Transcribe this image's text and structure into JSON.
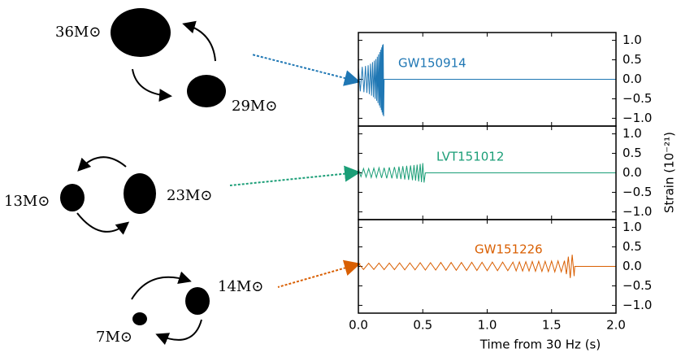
{
  "chart_data": {
    "type": "line",
    "xlabel": "Time from 30 Hz (s)",
    "ylabel": "Strain (10⁻²¹)",
    "xlim": [
      0,
      2
    ],
    "xticks": [
      {
        "value": 0,
        "label": "0.0"
      },
      {
        "value": 0.5,
        "label": "0.5"
      },
      {
        "value": 1,
        "label": "1.0"
      },
      {
        "value": 1.5,
        "label": "1.5"
      },
      {
        "value": 2,
        "label": "2.0"
      }
    ],
    "ylim": [
      -1.2,
      1.2
    ],
    "yticks": [
      {
        "value": 1,
        "label": "1.0"
      },
      {
        "value": 0.5,
        "label": "0.5"
      },
      {
        "value": 0,
        "label": "0.0"
      },
      {
        "value": -0.5,
        "label": "−0.5"
      },
      {
        "value": -1,
        "label": "−1.0"
      }
    ],
    "series": [
      {
        "name": "GW150914",
        "color": "#1f77b4",
        "x": [
          0,
          0.015,
          0.03,
          0.043,
          0.055,
          0.066,
          0.076,
          0.085,
          0.094,
          0.102,
          0.11,
          0.117,
          0.124,
          0.13,
          0.136,
          0.142,
          0.147,
          0.152,
          0.157,
          0.162,
          0.166,
          0.17,
          0.174,
          0.178,
          0.181,
          0.184,
          0.187,
          0.19,
          0.193,
          0.196,
          0.2,
          2.0
        ],
        "values": [
          0.3,
          -0.31,
          0.32,
          -0.33,
          0.34,
          -0.35,
          0.36,
          -0.38,
          0.4,
          -0.42,
          0.44,
          -0.46,
          0.48,
          -0.5,
          0.52,
          -0.55,
          0.58,
          -0.61,
          0.64,
          -0.67,
          0.7,
          -0.73,
          0.76,
          -0.79,
          0.82,
          -0.85,
          0.88,
          -0.91,
          0.9,
          -0.95,
          0,
          0
        ]
      },
      {
        "name": "LVT151012",
        "color": "#1b9e77",
        "x": [
          0,
          0.02,
          0.04,
          0.06,
          0.08,
          0.1,
          0.12,
          0.14,
          0.16,
          0.18,
          0.2,
          0.22,
          0.24,
          0.26,
          0.28,
          0.3,
          0.315,
          0.33,
          0.345,
          0.36,
          0.375,
          0.39,
          0.405,
          0.42,
          0.432,
          0.444,
          0.456,
          0.468,
          0.48,
          0.49,
          0.5,
          0.51,
          0.52,
          2.0
        ],
        "values": [
          0.1,
          -0.1,
          0.11,
          -0.11,
          0.11,
          -0.12,
          0.12,
          -0.12,
          0.13,
          -0.13,
          0.13,
          -0.14,
          0.14,
          -0.14,
          0.15,
          -0.15,
          0.16,
          -0.16,
          0.17,
          -0.17,
          0.18,
          -0.18,
          0.19,
          -0.19,
          0.2,
          -0.2,
          0.21,
          -0.22,
          0.23,
          -0.24,
          0.25,
          -0.25,
          0,
          0
        ]
      },
      {
        "name": "GW151226",
        "color": "#d95f02",
        "x": [
          0,
          0.04,
          0.08,
          0.12,
          0.16,
          0.2,
          0.24,
          0.28,
          0.32,
          0.36,
          0.4,
          0.44,
          0.48,
          0.52,
          0.56,
          0.6,
          0.64,
          0.68,
          0.72,
          0.76,
          0.8,
          0.84,
          0.88,
          0.92,
          0.96,
          1.0,
          1.04,
          1.08,
          1.12,
          1.16,
          1.2,
          1.225,
          1.25,
          1.275,
          1.3,
          1.325,
          1.35,
          1.375,
          1.4,
          1.425,
          1.45,
          1.475,
          1.5,
          1.525,
          1.55,
          1.575,
          1.6,
          1.615,
          1.63,
          1.645,
          1.66,
          1.675,
          1.68,
          2.0
        ],
        "values": [
          0.08,
          -0.08,
          0.08,
          -0.08,
          0.085,
          -0.085,
          0.085,
          -0.085,
          0.09,
          -0.09,
          0.09,
          -0.09,
          0.095,
          -0.095,
          0.095,
          -0.095,
          0.1,
          -0.1,
          0.1,
          -0.1,
          0.1,
          -0.105,
          0.105,
          -0.105,
          0.105,
          -0.11,
          0.11,
          -0.11,
          0.11,
          -0.11,
          0.11,
          -0.115,
          0.115,
          -0.12,
          0.12,
          -0.12,
          0.125,
          -0.125,
          0.13,
          -0.13,
          0.13,
          -0.135,
          0.135,
          -0.14,
          0.14,
          -0.14,
          0.145,
          -0.2,
          0.25,
          -0.3,
          0.3,
          -0.25,
          0,
          0
        ]
      }
    ]
  },
  "diagrams": [
    {
      "labels": [
        "36M⊙",
        "29M⊙"
      ]
    },
    {
      "labels": [
        "13M⊙",
        "23M⊙"
      ]
    },
    {
      "labels": [
        "14M⊙",
        "7M⊙"
      ]
    }
  ]
}
